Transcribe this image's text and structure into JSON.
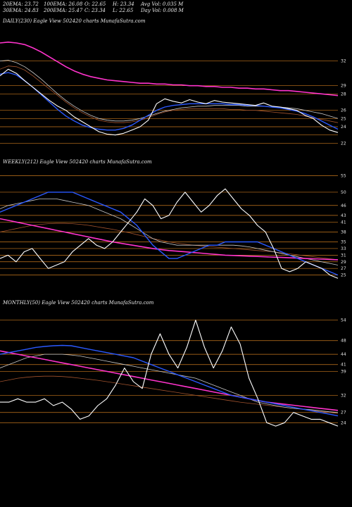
{
  "header": {
    "row1": [
      {
        "text": "20EMA: 23.72"
      },
      {
        "text": "100EMA: 26.08"
      },
      {
        "text": "O: 22.65"
      },
      {
        "text": "H: 23.34"
      },
      {
        "text": "Avg Vol: 0.035 M"
      }
    ],
    "row2": [
      {
        "text": "30EMA: 24.83"
      },
      {
        "text": "200EMA: 25.47"
      },
      {
        "text": "C: 23.34"
      },
      {
        "text": "L: 22.65"
      },
      {
        "text": "Day Vol: 0.008 M"
      }
    ]
  },
  "colors": {
    "background": "#000000",
    "price": "#ffffff",
    "ema_fast": "#2b59ff",
    "ema_slow": "#ff33cc",
    "ema_mid": "#c8c8c8",
    "ema_brown": "#a0522d",
    "level_line": "#c8781e"
  },
  "chart_data": [
    {
      "type": "line",
      "label": "DAILY(230) Eagle  View  502420  charts MunafaSutra.com",
      "ytick_labels": [
        "32",
        "29",
        "28",
        "26",
        "25",
        "24",
        "22"
      ],
      "ylim": [
        21,
        36
      ],
      "levels": [
        32,
        29,
        28,
        26,
        25,
        24,
        23,
        22
      ],
      "series": [
        {
          "key": "price",
          "values": [
            30.2,
            31.0,
            30.5,
            29.6,
            28.8,
            28.0,
            27.2,
            26.5,
            26.0,
            25.2,
            24.6,
            24.0,
            23.4,
            23.1,
            23.0,
            23.2,
            23.6,
            24.0,
            24.8,
            26.8,
            27.4,
            27.1,
            26.9,
            27.3,
            27.0,
            26.8,
            27.2,
            27.0,
            26.9,
            26.8,
            26.7,
            26.6,
            26.9,
            26.5,
            26.4,
            26.2,
            26.0,
            25.4,
            25.0,
            24.2,
            23.6,
            23.3
          ]
        },
        {
          "key": "ema_fast",
          "values": [
            30.4,
            30.6,
            30.3,
            29.6,
            28.8,
            27.9,
            27.0,
            26.1,
            25.3,
            24.7,
            24.2,
            23.9,
            23.7,
            23.6,
            23.6,
            23.8,
            24.2,
            24.8,
            25.4,
            26.0,
            26.4,
            26.6,
            26.7,
            26.8,
            26.8,
            26.8,
            26.8,
            26.8,
            26.7,
            26.7,
            26.6,
            26.6,
            26.5,
            26.4,
            26.3,
            26.1,
            25.9,
            25.6,
            25.2,
            24.7,
            24.2,
            23.7
          ]
        },
        {
          "key": "ema_slow",
          "values": [
            34.2,
            34.3,
            34.2,
            34.0,
            33.6,
            33.1,
            32.5,
            31.9,
            31.3,
            30.8,
            30.4,
            30.1,
            29.9,
            29.7,
            29.6,
            29.5,
            29.4,
            29.3,
            29.3,
            29.2,
            29.2,
            29.1,
            29.1,
            29.0,
            29.0,
            28.9,
            28.9,
            28.8,
            28.8,
            28.7,
            28.7,
            28.6,
            28.6,
            28.5,
            28.4,
            28.4,
            28.3,
            28.2,
            28.1,
            28.0,
            27.9,
            27.8
          ]
        },
        {
          "key": "ema_mid",
          "values": [
            32.0,
            32.1,
            31.8,
            31.3,
            30.6,
            29.8,
            28.9,
            28.0,
            27.2,
            26.5,
            25.9,
            25.4,
            25.0,
            24.8,
            24.7,
            24.7,
            24.8,
            25.0,
            25.3,
            25.6,
            25.9,
            26.1,
            26.3,
            26.4,
            26.5,
            26.5,
            26.6,
            26.6,
            26.6,
            26.6,
            26.5,
            26.5,
            26.5,
            26.4,
            26.4,
            26.3,
            26.2,
            26.0,
            25.8,
            25.6,
            25.3,
            25.0
          ]
        },
        {
          "key": "ema_brown",
          "values": [
            31.0,
            31.4,
            31.3,
            30.9,
            30.2,
            29.4,
            28.6,
            27.8,
            27.0,
            26.3,
            25.7,
            25.2,
            24.8,
            24.6,
            24.5,
            24.5,
            24.6,
            24.8,
            25.1,
            25.5,
            25.8,
            26.0,
            26.1,
            26.2,
            26.2,
            26.2,
            26.2,
            26.2,
            26.1,
            26.1,
            26.0,
            26.0,
            25.9,
            25.8,
            25.7,
            25.6,
            25.5,
            25.3,
            25.1,
            24.9,
            24.7,
            24.5
          ]
        }
      ]
    },
    {
      "type": "line",
      "label": "WEEKLY(212) Eagle  View  502420  charts MunafaSutra.com",
      "ytick_labels": [
        "55",
        "50",
        "46",
        "43",
        "41",
        "38",
        "35",
        "33",
        "31",
        "29",
        "27",
        "25"
      ],
      "ylim": [
        23,
        57
      ],
      "levels": [
        55,
        50,
        46,
        43,
        41,
        38,
        35,
        33,
        31,
        29,
        27,
        25
      ],
      "series": [
        {
          "key": "price",
          "values": [
            30,
            31,
            29,
            32,
            33,
            30,
            27,
            28,
            29,
            32,
            34,
            36,
            34,
            33,
            35,
            38,
            41,
            44,
            48,
            46,
            42,
            43,
            47,
            50,
            47,
            44,
            46,
            49,
            51,
            48,
            45,
            43,
            40,
            38,
            33,
            27,
            26,
            27,
            29,
            28,
            27,
            25,
            24
          ]
        },
        {
          "key": "ema_fast",
          "values": [
            44,
            45,
            46,
            47,
            48,
            49,
            50,
            50,
            50,
            50,
            49,
            48,
            47,
            46,
            45,
            44,
            42,
            40,
            37,
            34,
            32,
            30,
            30,
            31,
            32,
            33,
            34,
            34,
            35,
            35,
            35,
            35,
            35,
            34,
            33,
            32,
            31,
            30,
            29,
            28,
            27,
            26,
            25
          ]
        },
        {
          "key": "ema_slow",
          "values": [
            42,
            41.5,
            41,
            40.5,
            40,
            39.5,
            39,
            38.5,
            38,
            37.5,
            37,
            36.5,
            36,
            35.5,
            35,
            34.6,
            34.2,
            33.8,
            33.4,
            33,
            32.7,
            32.4,
            32.2,
            32,
            31.8,
            31.6,
            31.4,
            31.2,
            31,
            30.9,
            30.8,
            30.7,
            30.6,
            30.5,
            30.4,
            30.3,
            30.2,
            30.1,
            30,
            29.9,
            29.8,
            29.7,
            29.6
          ]
        },
        {
          "key": "ema_mid",
          "values": [
            45,
            46,
            46.5,
            47,
            47.5,
            48,
            48,
            48,
            47.5,
            47,
            46.5,
            46,
            45,
            44,
            43,
            42,
            40.5,
            39,
            37.5,
            36,
            35,
            34.5,
            34,
            34,
            34,
            34,
            34,
            34,
            34,
            34,
            33.8,
            33.5,
            33,
            32.5,
            32,
            31.5,
            31,
            30.5,
            30,
            29.5,
            29,
            28.5,
            28
          ]
        },
        {
          "key": "ema_brown",
          "values": [
            38,
            38.5,
            39,
            39.5,
            40,
            40.3,
            40.5,
            40.6,
            40.6,
            40.5,
            40.3,
            40,
            39.6,
            39.2,
            38.8,
            38.3,
            37.8,
            37.2,
            36.6,
            36,
            35.5,
            35,
            34.6,
            34.3,
            34,
            33.8,
            33.6,
            33.4,
            33.2,
            33,
            32.8,
            32.6,
            32.4,
            32.2,
            32,
            31.7,
            31.4,
            31.1,
            30.8,
            30.5,
            30.2,
            29.9,
            29.6
          ]
        }
      ]
    },
    {
      "type": "line",
      "label": "MONTHLY(50) Eagle  View  502420  charts MunafaSutra.com",
      "ytick_labels": [
        "54",
        "48",
        "44",
        "41",
        "39",
        "32",
        "27",
        "24"
      ],
      "ylim": [
        22,
        57
      ],
      "levels": [
        54,
        48,
        44,
        41,
        39,
        32,
        27,
        24
      ],
      "series": [
        {
          "key": "price",
          "values": [
            30,
            30,
            31,
            30,
            30,
            31,
            29,
            30,
            28,
            25,
            26,
            29,
            31,
            35,
            40,
            36,
            34,
            44,
            50,
            44,
            40,
            46,
            54,
            46,
            40,
            45,
            52,
            47,
            37,
            31,
            24,
            23,
            24,
            27,
            26,
            25,
            25,
            24,
            23
          ]
        },
        {
          "key": "ema_fast",
          "values": [
            44,
            44.5,
            45,
            45.5,
            46,
            46.3,
            46.5,
            46.6,
            46.5,
            46,
            45.5,
            45,
            44.5,
            44,
            43.5,
            43,
            42,
            41,
            40,
            39,
            38,
            37,
            36,
            35,
            34,
            33,
            32,
            31.5,
            31,
            30.5,
            30,
            29.5,
            29,
            28.5,
            28,
            27.5,
            27,
            26.5,
            26
          ]
        },
        {
          "key": "ema_slow",
          "values": [
            45,
            44.5,
            44,
            43.5,
            43,
            42.5,
            42,
            41.5,
            41,
            40.5,
            40,
            39.5,
            39,
            38.5,
            38,
            37.5,
            37,
            36.5,
            36,
            35.5,
            35,
            34.5,
            34,
            33.5,
            33,
            32.5,
            32,
            31.5,
            31,
            30.5,
            30,
            29.7,
            29.4,
            29.1,
            28.8,
            28.5,
            28.2,
            27.9,
            27.6
          ]
        },
        {
          "key": "ema_mid",
          "values": [
            40,
            41,
            42,
            43,
            43.5,
            44,
            44,
            44,
            43.8,
            43.5,
            43,
            42.5,
            42,
            41.5,
            41,
            40.5,
            40,
            39.5,
            39,
            38.5,
            38,
            37.5,
            37,
            36,
            35,
            34,
            33,
            32,
            31,
            30,
            29.5,
            29,
            28.5,
            28.2,
            28,
            27.8,
            27.5,
            27.2,
            27
          ]
        },
        {
          "key": "ema_brown",
          "values": [
            36,
            36.5,
            37,
            37.3,
            37.5,
            37.6,
            37.6,
            37.5,
            37.3,
            37,
            36.7,
            36.4,
            36,
            35.6,
            35.2,
            34.8,
            34.4,
            34,
            33.6,
            33.2,
            32.8,
            32.4,
            32,
            31.6,
            31.2,
            30.8,
            30.4,
            30,
            29.7,
            29.4,
            29.1,
            28.8,
            28.5,
            28.2,
            27.9,
            27.6,
            27.3,
            27,
            26.7
          ]
        }
      ]
    }
  ]
}
